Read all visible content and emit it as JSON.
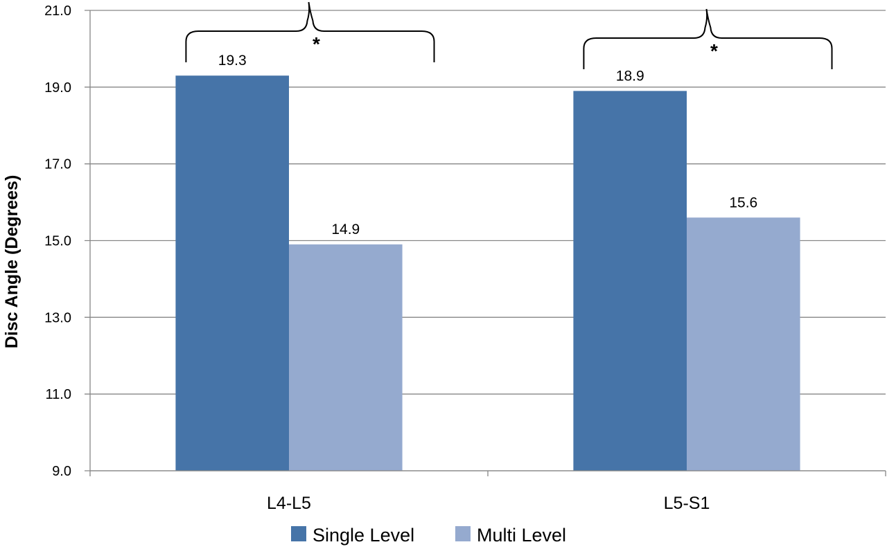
{
  "chart_data": {
    "type": "bar",
    "categories": [
      "L4-L5",
      "L5-S1"
    ],
    "series": [
      {
        "name": "Single Level",
        "values": [
          19.3,
          18.9
        ],
        "color": "#4674A8"
      },
      {
        "name": "Multi Level",
        "values": [
          14.9,
          15.6
        ],
        "color": "#95AACF"
      }
    ],
    "data_labels": [
      [
        "19.3",
        "18.9"
      ],
      [
        "14.9",
        "15.6"
      ]
    ],
    "ylabel": "Disc Angle (Degrees)",
    "xlabel": "",
    "ylim": [
      9.0,
      21.0
    ],
    "yticks": [
      "9.0",
      "11.0",
      "13.0",
      "15.0",
      "17.0",
      "19.0",
      "21.0"
    ],
    "grid": true,
    "legend_position": "bottom",
    "significance_markers": [
      "*",
      "*"
    ],
    "gridline_color": "#868686"
  }
}
